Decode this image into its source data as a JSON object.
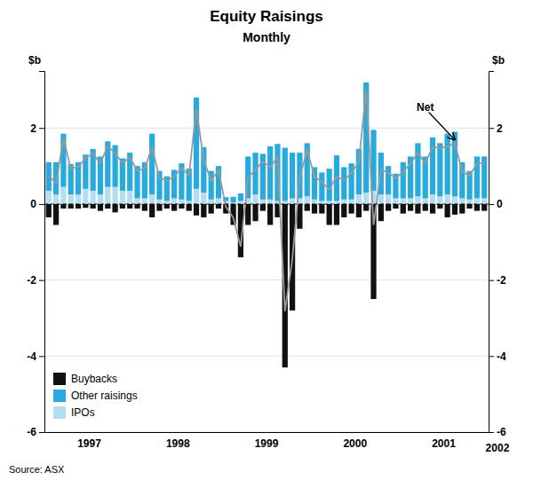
{
  "chart_data": {
    "type": "bar",
    "title": "Equity Raisings",
    "subtitle": "Monthly",
    "source": "Source: ASX",
    "ylabel": "$b",
    "y2label": "$b",
    "annotations": [
      "Net",
      "2002"
    ],
    "stacked": true,
    "grid": true,
    "legend": "lower left",
    "categories": [
      "1997",
      null,
      null,
      null,
      null,
      null,
      null,
      null,
      null,
      null,
      null,
      null,
      "1998",
      null,
      null,
      null,
      null,
      null,
      null,
      null,
      null,
      null,
      null,
      null,
      "1999",
      null,
      null,
      null,
      null,
      null,
      null,
      null,
      null,
      null,
      null,
      null,
      "2000",
      null,
      null,
      null,
      null,
      null,
      null,
      null,
      null,
      null,
      null,
      null,
      "2001",
      null,
      null,
      null,
      null,
      null,
      null,
      null,
      null,
      null,
      null,
      null
    ],
    "ylim": [
      -6,
      3.5
    ],
    "yticks": [
      -6,
      -4,
      -2,
      0,
      2
    ],
    "y2lim": [
      -6,
      3.5
    ],
    "y2ticks": [
      -6,
      -4,
      -2,
      0,
      2
    ],
    "series": [
      {
        "name": "IPOs",
        "type": "bar",
        "color": "#b3ddf0",
        "values": [
          0.35,
          0.25,
          0.45,
          0.25,
          0.25,
          0.4,
          0.35,
          0.25,
          0.45,
          0.45,
          0.35,
          0.35,
          0.15,
          0.15,
          0.25,
          0.12,
          0.08,
          0.15,
          0.12,
          0.08,
          0.4,
          0.3,
          0.12,
          0.15,
          0.08,
          0.04,
          0.08,
          0.15,
          0.25,
          0.12,
          0.12,
          0.08,
          0.08,
          0.15,
          0.15,
          0.2,
          0.12,
          0.08,
          0.08,
          0.08,
          0.12,
          0.12,
          0.25,
          0.3,
          0.35,
          0.25,
          0.25,
          0.15,
          0.15,
          0.15,
          0.2,
          0.15,
          0.25,
          0.2,
          0.25,
          0.2,
          0.15,
          0.12,
          0.15,
          0.15
        ]
      },
      {
        "name": "Other raisings",
        "type": "bar",
        "color": "#29aadd",
        "values": [
          0.75,
          0.85,
          1.4,
          0.8,
          0.85,
          0.9,
          1.1,
          1.0,
          1.2,
          1.1,
          0.85,
          1.0,
          0.85,
          0.95,
          1.6,
          0.75,
          0.65,
          0.75,
          0.95,
          0.85,
          2.4,
          1.2,
          0.75,
          0.85,
          0.1,
          0.15,
          0.2,
          1.1,
          1.1,
          1.2,
          1.4,
          1.5,
          1.4,
          1.2,
          1.2,
          1.4,
          0.85,
          0.75,
          0.85,
          1.2,
          0.85,
          0.95,
          1.2,
          2.9,
          1.6,
          1.1,
          0.75,
          0.65,
          0.95,
          1.1,
          1.4,
          1.1,
          1.5,
          1.4,
          1.6,
          1.7,
          0.95,
          0.75,
          1.1,
          1.1
        ]
      },
      {
        "name": "Buybacks",
        "type": "bar",
        "color": "#111111",
        "values": [
          -0.35,
          -0.55,
          -0.12,
          -0.12,
          -0.12,
          -0.1,
          -0.12,
          -0.18,
          -0.12,
          -0.22,
          -0.12,
          -0.12,
          -0.12,
          -0.18,
          -0.35,
          -0.18,
          -0.12,
          -0.18,
          -0.12,
          -0.18,
          -0.3,
          -0.35,
          -0.25,
          -0.12,
          -0.25,
          -0.55,
          -1.4,
          -0.55,
          -0.45,
          -0.18,
          -0.55,
          -0.35,
          -4.3,
          -2.8,
          -0.65,
          -0.18,
          -0.25,
          -0.25,
          -0.55,
          -0.55,
          -0.35,
          -0.25,
          -0.35,
          -0.18,
          -2.5,
          -0.45,
          -0.18,
          -0.12,
          -0.25,
          -0.18,
          -0.25,
          -0.18,
          -0.25,
          -0.12,
          -0.35,
          -0.28,
          -0.25,
          -0.12,
          -0.18,
          -0.18
        ]
      },
      {
        "type": "line",
        "color": "#999999",
        "values": [
          0.75,
          0.55,
          1.73,
          0.93,
          0.98,
          1.2,
          1.33,
          1.07,
          1.53,
          1.33,
          1.08,
          1.23,
          0.88,
          0.92,
          1.5,
          0.69,
          0.61,
          0.72,
          0.95,
          0.75,
          2.5,
          1.15,
          0.62,
          0.88,
          -0.07,
          -0.36,
          -1.12,
          0.7,
          0.9,
          1.12,
          0.97,
          1.23,
          -2.82,
          -1.45,
          0.7,
          1.42,
          0.72,
          0.58,
          0.38,
          0.73,
          0.62,
          0.82,
          1.1,
          3.02,
          -0.55,
          0.9,
          0.82,
          0.68,
          0.85,
          1.07,
          1.35,
          1.07,
          1.5,
          1.48,
          1.5,
          1.62,
          0.85,
          0.75,
          1.07,
          1.07
        ]
      }
    ]
  }
}
